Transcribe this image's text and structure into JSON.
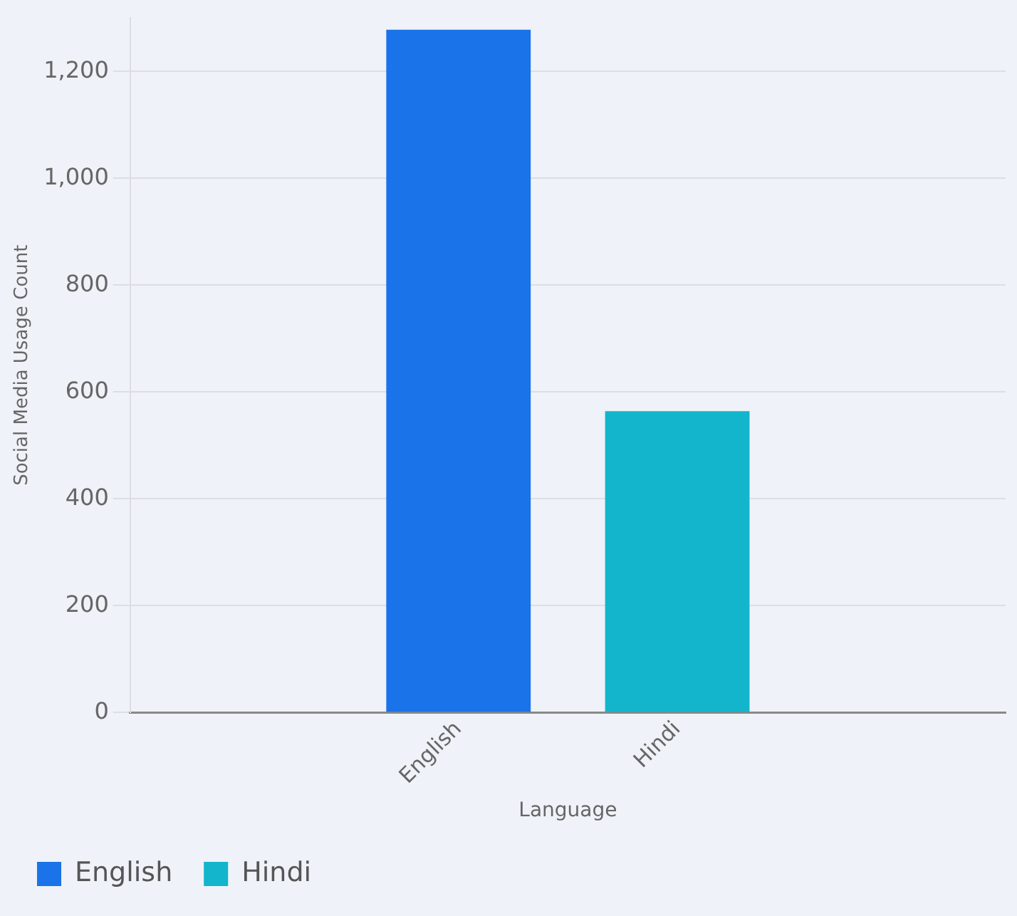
{
  "chart_data": {
    "type": "bar",
    "xlabel": "Language",
    "ylabel": "Social Media Usage Count",
    "categories": [
      null,
      "English",
      "Hindi",
      null
    ],
    "series": [
      {
        "name": "English",
        "color": "#1a73e8",
        "values": [
          null,
          1278,
          null,
          null
        ]
      },
      {
        "name": "Hindi",
        "color": "#12b5cb",
        "values": [
          null,
          null,
          564,
          null
        ]
      }
    ],
    "ylim": [
      0,
      1300
    ],
    "yticks": [
      0,
      {
        "value": 200,
        "label": "200"
      },
      {
        "value": 400,
        "label": "400"
      },
      {
        "value": 600,
        "label": "600"
      },
      {
        "value": 800,
        "label": "800"
      },
      {
        "value": 1000,
        "label": "1,000"
      },
      {
        "value": 1200,
        "label": "1,200"
      }
    ],
    "grid": "y",
    "legend": "bottom left"
  }
}
